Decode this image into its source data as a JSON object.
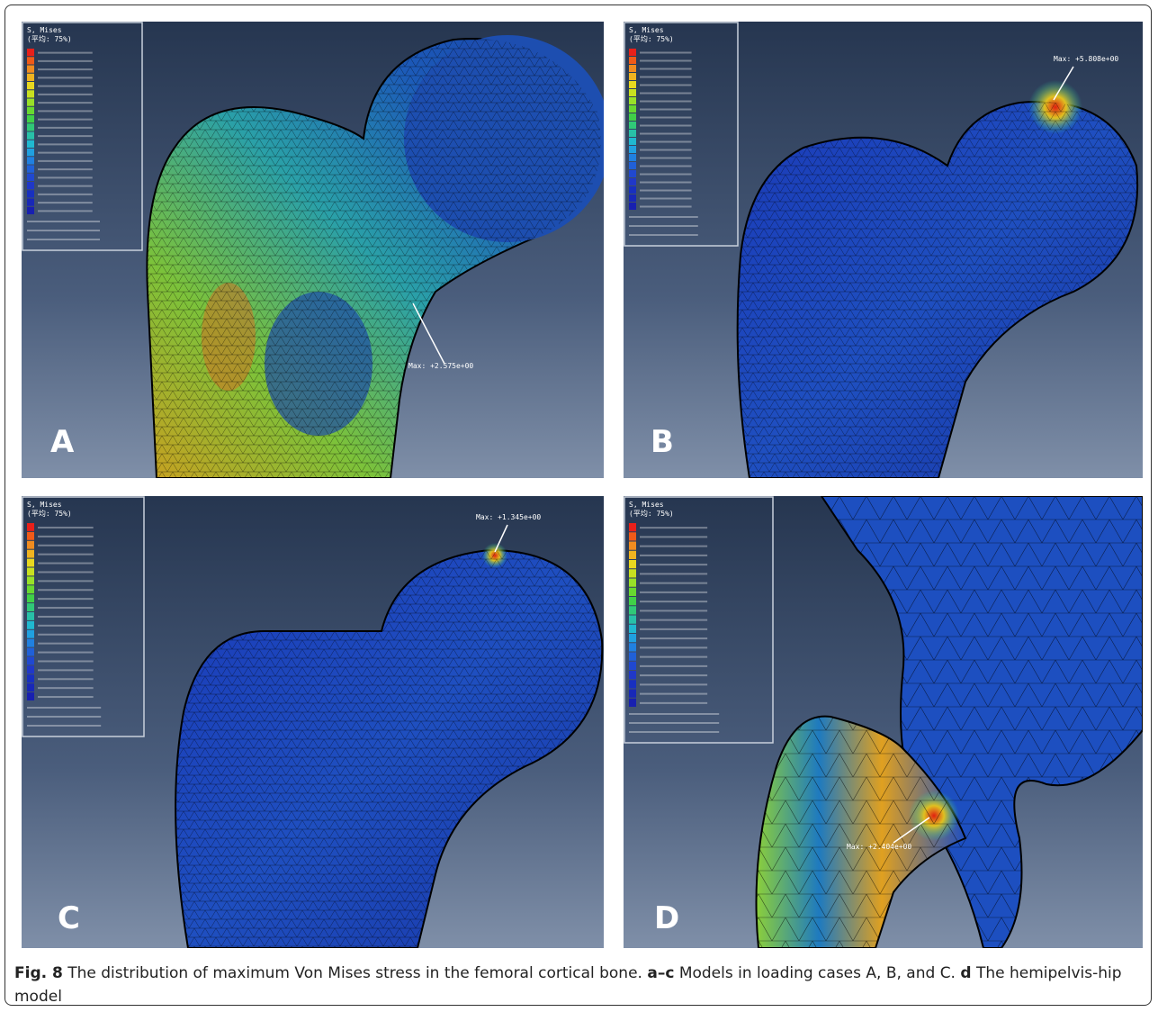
{
  "figure": {
    "panels": [
      {
        "label": "A",
        "legend_title": "S, Mises",
        "legend_subtitle": "(平均: 75%)",
        "max_label": "Max: +2.575e+00"
      },
      {
        "label": "B",
        "legend_title": "S, Mises",
        "legend_subtitle": "(平均: 75%)",
        "max_label": "Max: +5.808e+00"
      },
      {
        "label": "C",
        "legend_title": "S, Mises",
        "legend_subtitle": "(平均: 75%)",
        "max_label": "Max: +1.345e+00"
      },
      {
        "label": "D",
        "legend_title": "S, Mises",
        "legend_subtitle": "(平均: 75%)",
        "max_label": "Max: +2.404e+00"
      }
    ],
    "caption": {
      "label": "Fig. 8",
      "text1": " The distribution of maximum Von Mises stress in the femoral cortical bone. ",
      "bold2": "a–c",
      "text2": " Models in loading cases A, B, and C. ",
      "bold3": "d",
      "text3": " The hemipelvis-hip model"
    }
  }
}
